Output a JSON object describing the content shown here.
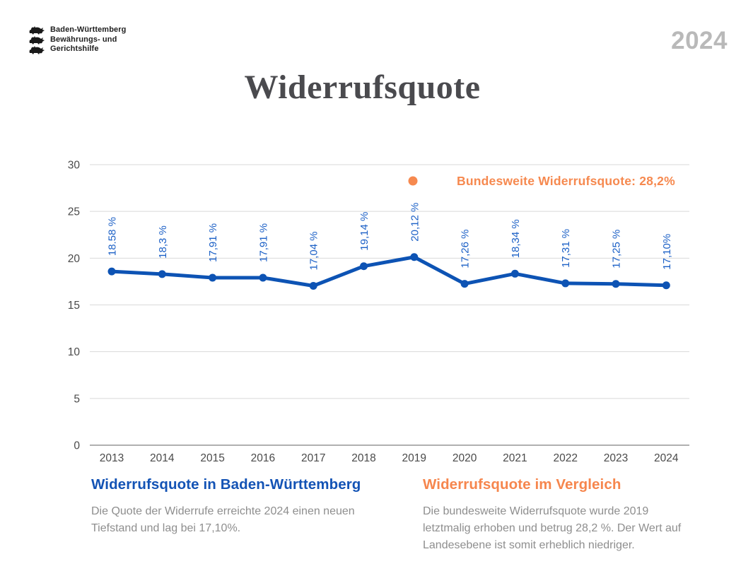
{
  "header": {
    "logo_lines": [
      "Baden-Württemberg",
      "Bewährungs- und",
      "Gerichtshilfe"
    ],
    "year": "2024",
    "title": "Widerrufsquote"
  },
  "chart_data": {
    "type": "line",
    "title": "Widerrufsquote",
    "x": [
      2013,
      2014,
      2015,
      2016,
      2017,
      2018,
      2019,
      2020,
      2021,
      2022,
      2023,
      2024
    ],
    "series": [
      {
        "name": "Widerrufsquote Baden-Württemberg",
        "values": [
          18.58,
          18.3,
          17.91,
          17.91,
          17.04,
          19.14,
          20.12,
          17.26,
          18.34,
          17.31,
          17.25,
          17.1
        ],
        "point_labels": [
          "18.58 %",
          "18,3 %",
          "17,91 %",
          "17,91 %",
          "17,04 %",
          "19,14 %",
          "20,12 %",
          "17,26 %",
          "18,34 %",
          "17,31 %",
          "17,25 %",
          "17,10%"
        ]
      }
    ],
    "ylim": [
      0,
      30
    ],
    "yticks": [
      0,
      5,
      10,
      15,
      20,
      25,
      30
    ],
    "grid": true,
    "legend": {
      "label": "Bundesweite Widerrufsquote: 28,2%",
      "position": "inside-top-right",
      "reference_value": 28.2
    },
    "colors": {
      "line": "#0d53b4",
      "point_label": "#1a5fc6",
      "legend": "#f6894f",
      "grid": "#d9d9d9",
      "axis_line": "#b0b0b0",
      "tick_text": "#4a4a4a"
    }
  },
  "sections": {
    "left": {
      "heading": "Widerrufsquote in Baden-Württemberg",
      "body": "Die Quote der Widerrufe erreichte 2024 einen neuen Tiefstand und lag bei 17,10%."
    },
    "right": {
      "heading": "Widerrufsquote im Vergleich",
      "body": "Die bundesweite Widerrufsquote wurde 2019 letztmalig erhoben und betrug 28,2 %. Der Wert auf Landesebene ist somit erheblich niedriger."
    }
  },
  "colors": {
    "title": "#4a4a4e",
    "year_badge": "#b9b9b9",
    "heading_left": "#1353b5",
    "heading_right": "#f6864d",
    "body_text": "#8e8e8e"
  }
}
